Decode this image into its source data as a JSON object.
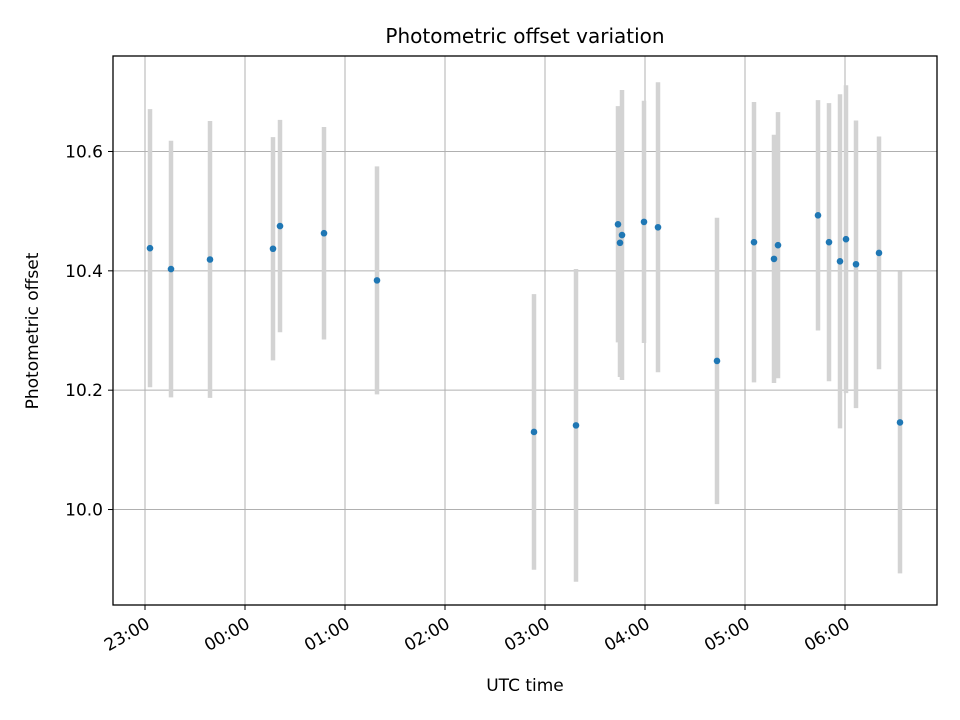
{
  "chart_data": {
    "type": "scatter",
    "title": "Photometric offset variation",
    "xlabel": "UTC time",
    "ylabel": "Photometric offset",
    "x_unit": "hours after 23:00 UTC",
    "xlim": [
      -0.32,
      7.92
    ],
    "ylim": [
      9.84,
      10.76
    ],
    "x_ticks": [
      {
        "value": 0,
        "label": "23:00"
      },
      {
        "value": 1,
        "label": "00:00"
      },
      {
        "value": 2,
        "label": "01:00"
      },
      {
        "value": 3,
        "label": "02:00"
      },
      {
        "value": 4,
        "label": "03:00"
      },
      {
        "value": 5,
        "label": "04:00"
      },
      {
        "value": 6,
        "label": "05:00"
      },
      {
        "value": 7,
        "label": "06:00"
      }
    ],
    "y_ticks": [
      {
        "value": 10.0,
        "label": "10.0"
      },
      {
        "value": 10.2,
        "label": "10.2"
      },
      {
        "value": 10.4,
        "label": "10.4"
      },
      {
        "value": 10.6,
        "label": "10.6"
      }
    ],
    "grid": true,
    "point_color": "#1f77b4",
    "errorbar_color": "#d3d3d3",
    "points": [
      {
        "x": 0.05,
        "y": 10.438,
        "err": 0.233
      },
      {
        "x": 0.26,
        "y": 10.403,
        "err": 0.215
      },
      {
        "x": 0.65,
        "y": 10.419,
        "err": 0.232
      },
      {
        "x": 1.28,
        "y": 10.437,
        "err": 0.187
      },
      {
        "x": 1.35,
        "y": 10.475,
        "err": 0.178
      },
      {
        "x": 1.79,
        "y": 10.463,
        "err": 0.178
      },
      {
        "x": 2.32,
        "y": 10.384,
        "err": 0.191
      },
      {
        "x": 3.89,
        "y": 10.13,
        "err": 0.231
      },
      {
        "x": 4.31,
        "y": 10.141,
        "err": 0.262
      },
      {
        "x": 4.73,
        "y": 10.478,
        "err": 0.198
      },
      {
        "x": 4.75,
        "y": 10.447,
        "err": 0.225
      },
      {
        "x": 4.77,
        "y": 10.46,
        "err": 0.243
      },
      {
        "x": 4.99,
        "y": 10.482,
        "err": 0.203
      },
      {
        "x": 5.13,
        "y": 10.473,
        "err": 0.243
      },
      {
        "x": 5.72,
        "y": 10.249,
        "err": 0.24
      },
      {
        "x": 6.09,
        "y": 10.448,
        "err": 0.235
      },
      {
        "x": 6.29,
        "y": 10.42,
        "err": 0.208
      },
      {
        "x": 6.33,
        "y": 10.443,
        "err": 0.223
      },
      {
        "x": 6.73,
        "y": 10.493,
        "err": 0.193
      },
      {
        "x": 6.84,
        "y": 10.448,
        "err": 0.233
      },
      {
        "x": 6.95,
        "y": 10.416,
        "err": 0.28
      },
      {
        "x": 7.01,
        "y": 10.453,
        "err": 0.258
      },
      {
        "x": 7.11,
        "y": 10.411,
        "err": 0.241
      },
      {
        "x": 7.34,
        "y": 10.43,
        "err": 0.195
      },
      {
        "x": 7.55,
        "y": 10.146,
        "err": 0.253
      }
    ]
  }
}
